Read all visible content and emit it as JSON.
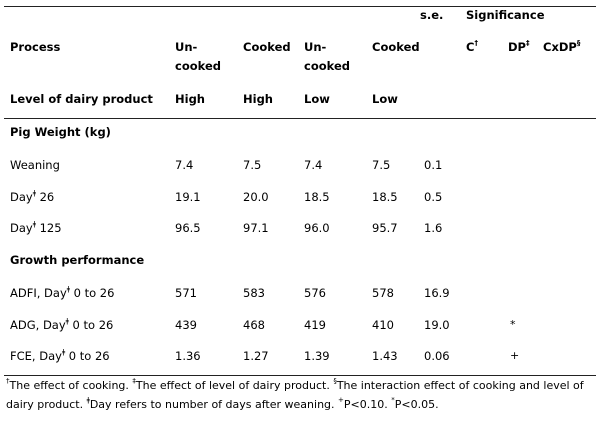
{
  "header": {
    "se": "s.e.",
    "significance": "Significance",
    "process_label": "Process",
    "processes": [
      {
        "line1": "Un-",
        "line2": "cooked"
      },
      {
        "line1": "Cooked",
        "line2": ""
      },
      {
        "line1": "Un-",
        "line2": "cooked"
      },
      {
        "line1": "Cooked",
        "line2": ""
      }
    ],
    "sig_cols": [
      {
        "label": "C",
        "mark": "†"
      },
      {
        "label": "DP",
        "mark": "‡"
      },
      {
        "label": "CxDP",
        "mark": "§"
      }
    ],
    "level_label": "Level of dairy product",
    "levels": [
      "High",
      "High",
      "Low",
      "Low"
    ]
  },
  "sections": [
    {
      "title": "Pig Weight (kg)",
      "rows": [
        {
          "label": "Weaning",
          "mark": "",
          "suffix": "",
          "values": [
            "7.4",
            "7.5",
            "7.4",
            "7.5"
          ],
          "se": "0.1",
          "sig": [
            "",
            "",
            ""
          ]
        },
        {
          "label": "Day",
          "mark": "ǂ",
          "suffix": " 26",
          "values": [
            "19.1",
            "20.0",
            "18.5",
            "18.5"
          ],
          "se": "0.5",
          "sig": [
            "",
            "",
            ""
          ]
        },
        {
          "label": "Day",
          "mark": "ǂ",
          "suffix": " 125",
          "values": [
            "96.5",
            "97.1",
            "96.0",
            "95.7"
          ],
          "se": "1.6",
          "sig": [
            "",
            "",
            ""
          ]
        }
      ]
    },
    {
      "title": "Growth performance",
      "rows": [
        {
          "label": "ADFI, Day",
          "mark": "ǂ",
          "suffix": " 0 to 26",
          "values": [
            "571",
            "583",
            "576",
            "578"
          ],
          "se": "16.9",
          "sig": [
            "",
            "",
            ""
          ]
        },
        {
          "label": "ADG, Day",
          "mark": "ǂ",
          "suffix": " 0 to 26",
          "values": [
            "439",
            "468",
            "419",
            "410"
          ],
          "se": "19.0",
          "sig": [
            "",
            "*",
            ""
          ]
        },
        {
          "label": "FCE, Day",
          "mark": "ǂ",
          "suffix": " 0 to 26",
          "values": [
            "1.36",
            "1.27",
            "1.39",
            "1.43"
          ],
          "se": "0.06",
          "sig": [
            "",
            "+",
            ""
          ]
        }
      ]
    }
  ],
  "footnote": {
    "m1": "†",
    "t1": "The effect of cooking. ",
    "m2": "‡",
    "t2": "The effect of level of dairy product. ",
    "m3": "§",
    "t3": "The interaction effect of cooking and level of dairy product. ",
    "m4": "ǂ",
    "t4": "Day refers to number of days after weaning. ",
    "m5": "+",
    "t5": "P<0.10.  ",
    "m6": "*",
    "t6": "P<0.05."
  }
}
